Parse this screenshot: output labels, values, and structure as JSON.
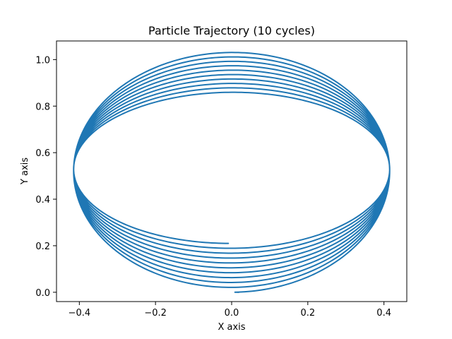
{
  "chart_data": {
    "type": "line",
    "title": "Particle Trajectory (10 cycles)",
    "xlabel": "X axis",
    "ylabel": "Y axis",
    "xlim": [
      -0.46,
      0.46
    ],
    "ylim": [
      -0.04,
      1.08
    ],
    "x_ticks": [
      -0.4,
      -0.2,
      0.0,
      0.2,
      0.4
    ],
    "x_tick_labels": [
      "−0.4",
      "−0.2",
      "0.0",
      "0.2",
      "0.4"
    ],
    "y_ticks": [
      0.0,
      0.2,
      0.4,
      0.6,
      0.8,
      1.0
    ],
    "y_tick_labels": [
      "0.0",
      "0.2",
      "0.4",
      "0.6",
      "0.8",
      "1.0"
    ],
    "grid": false,
    "legend": "none",
    "series": [
      {
        "color": "#1f77b4",
        "cycles": 10,
        "x_amplitude": 0.415,
        "y_center_start": 0.52,
        "y_center_end": 0.53,
        "y_amplitude_start": 0.52,
        "y_amplitude_end": 0.32,
        "start": [
          0.02,
          0.0
        ],
        "end": [
          -0.01,
          0.21
        ]
      }
    ]
  }
}
